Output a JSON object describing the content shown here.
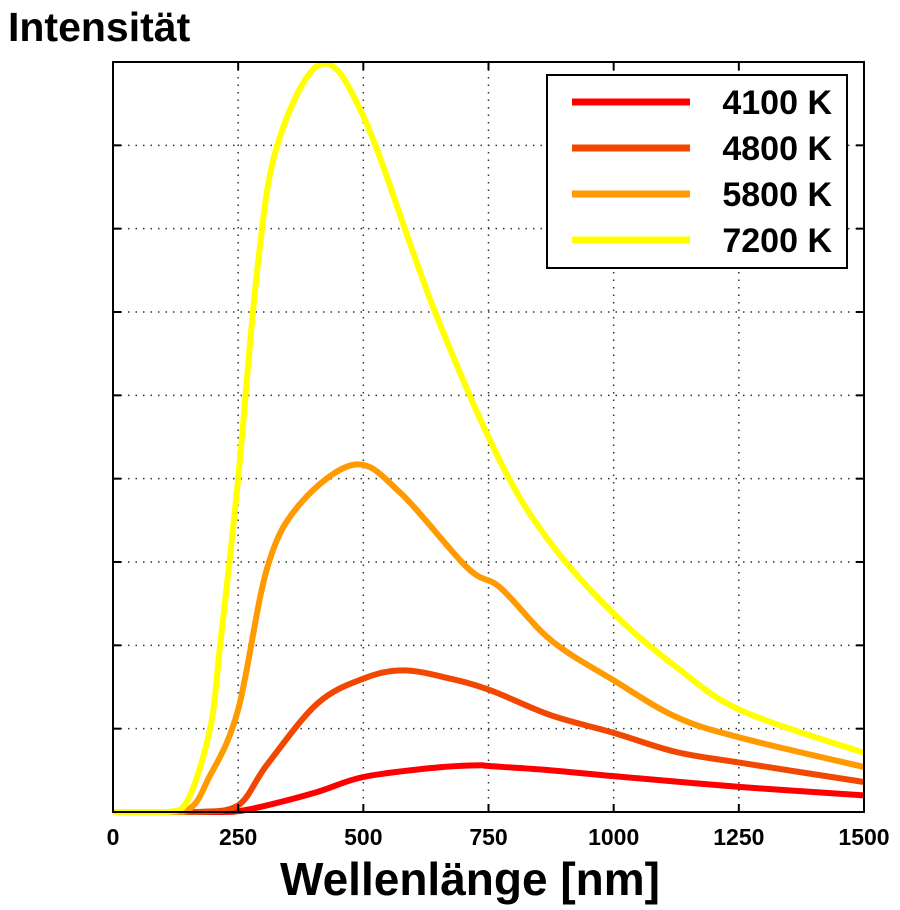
{
  "chart_data": {
    "type": "line",
    "title": "Intensität",
    "xlabel": "Wellenlänge [nm]",
    "ylabel": "",
    "xlim": [
      0,
      1500
    ],
    "ylim": [
      0,
      9
    ],
    "xticks": [
      0,
      250,
      500,
      750,
      1000,
      1250,
      1500
    ],
    "xtick_labels": [
      "0",
      "250",
      "500",
      "750",
      "1000",
      "1250",
      "1500"
    ],
    "yticks": [
      0,
      1,
      2,
      3,
      4,
      5,
      6,
      7,
      8,
      9
    ],
    "ytick_labels_shown": false,
    "grid": true,
    "legend_position": "top-right",
    "series": [
      {
        "name": "4100 K",
        "color": "#ff0000",
        "x": [
          0,
          200,
          250,
          308,
          408,
          500,
          640,
          727,
          754,
          875,
          1000,
          1254,
          1500
        ],
        "y": [
          0,
          0,
          0.01,
          0.08,
          0.24,
          0.42,
          0.53,
          0.56,
          0.55,
          0.5,
          0.43,
          0.3,
          0.2
        ]
      },
      {
        "name": "4800 K",
        "color": "#f04800",
        "x": [
          0,
          170,
          250,
          308,
          408,
          500,
          580,
          674,
          754,
          875,
          1000,
          1125,
          1254,
          1500
        ],
        "y": [
          0,
          0,
          0.08,
          0.57,
          1.3,
          1.6,
          1.7,
          1.6,
          1.46,
          1.16,
          0.95,
          0.72,
          0.59,
          0.36
        ]
      },
      {
        "name": "5800 K",
        "color": "#ff9a00",
        "x": [
          0,
          140,
          194,
          250,
          308,
          374,
          484,
          574,
          708,
          774,
          875,
          1000,
          1125,
          1254,
          1500
        ],
        "y": [
          0,
          0,
          0.44,
          1.23,
          2.93,
          3.7,
          4.17,
          3.83,
          2.93,
          2.69,
          2.06,
          1.58,
          1.14,
          0.89,
          0.54
        ]
      },
      {
        "name": "7200 K",
        "color": "#ffff00",
        "x": [
          0,
          110,
          150,
          194,
          214,
          250,
          288,
          328,
          414,
          500,
          640,
          774,
          875,
          1000,
          1125,
          1254,
          1500
        ],
        "y": [
          0,
          0,
          0.15,
          1.0,
          2.0,
          4.0,
          6.5,
          8.0,
          8.97,
          8.35,
          6.05,
          4.2,
          3.22,
          2.38,
          1.74,
          1.22,
          0.71
        ]
      }
    ]
  }
}
